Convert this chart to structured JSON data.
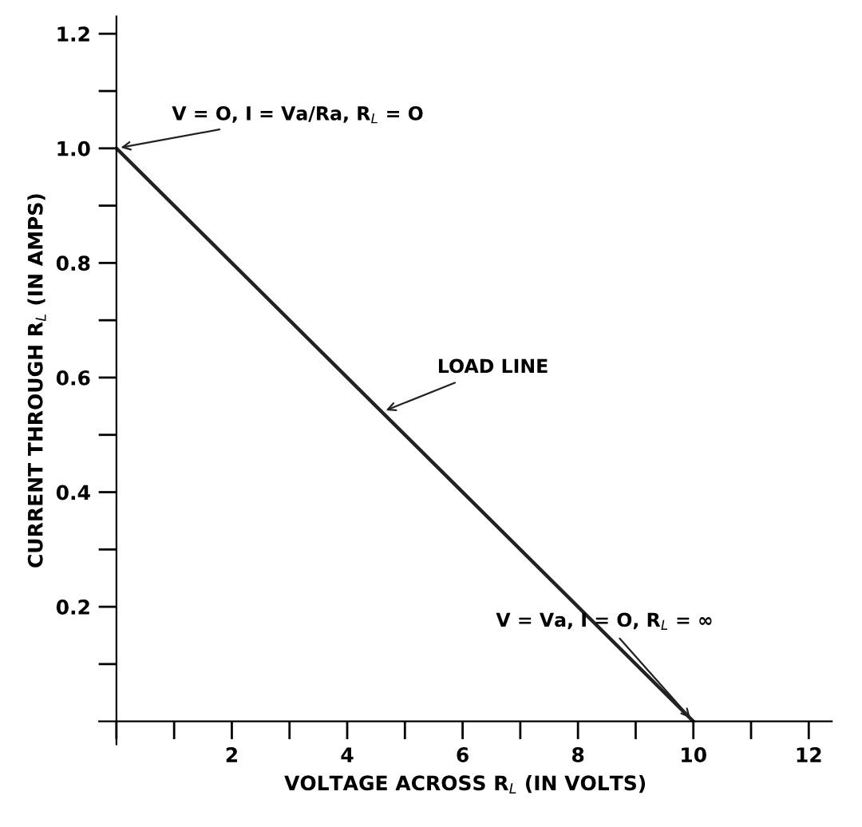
{
  "chart_data": {
    "type": "line",
    "xlabel": "VOLTAGE ACROSS R$_{L}$ (IN VOLTS)",
    "ylabel": "CURRENT THROUGH R$_{L}$ (IN AMPS)",
    "x": [
      0,
      10
    ],
    "series": [
      {
        "color": "#222222",
        "values": [
          1.0,
          0.0
        ]
      }
    ],
    "xlim": [
      -0.3,
      12.4
    ],
    "ylim": [
      -0.04,
      1.23
    ],
    "xticks": [
      {
        "value": 0,
        "label": null
      },
      {
        "value": 1,
        "label": null
      },
      2,
      {
        "value": 3,
        "label": null
      },
      4,
      {
        "value": 5,
        "label": null
      },
      6,
      {
        "value": 7,
        "label": null
      },
      8,
      {
        "value": 9,
        "label": null
      },
      10,
      {
        "value": 11,
        "label": null
      },
      12
    ],
    "yticks": [
      {
        "value": 0.1,
        "label": null
      },
      0.2,
      {
        "value": 0.3,
        "label": null
      },
      0.4,
      {
        "value": 0.5,
        "label": null
      },
      0.6,
      {
        "value": 0.7,
        "label": null
      },
      0.8,
      {
        "value": 0.9,
        "label": null
      },
      {
        "value": 1.0,
        "label": "1.0"
      },
      {
        "value": 1.1,
        "label": null
      },
      1.2
    ],
    "annotations": [
      {
        "text": "V = O, I = Va/Ra, R$_{L}$ = O",
        "x": 0,
        "y": 1.0
      },
      {
        "text": "LOAD LINE",
        "x": 4.6,
        "y": 0.54
      },
      {
        "text": "V = Va, I = O, R$_{L}$ = ∞",
        "x": 10,
        "y": 0
      }
    ],
    "grid": false,
    "marker": "none",
    "line_style": "solid",
    "legend": false
  }
}
